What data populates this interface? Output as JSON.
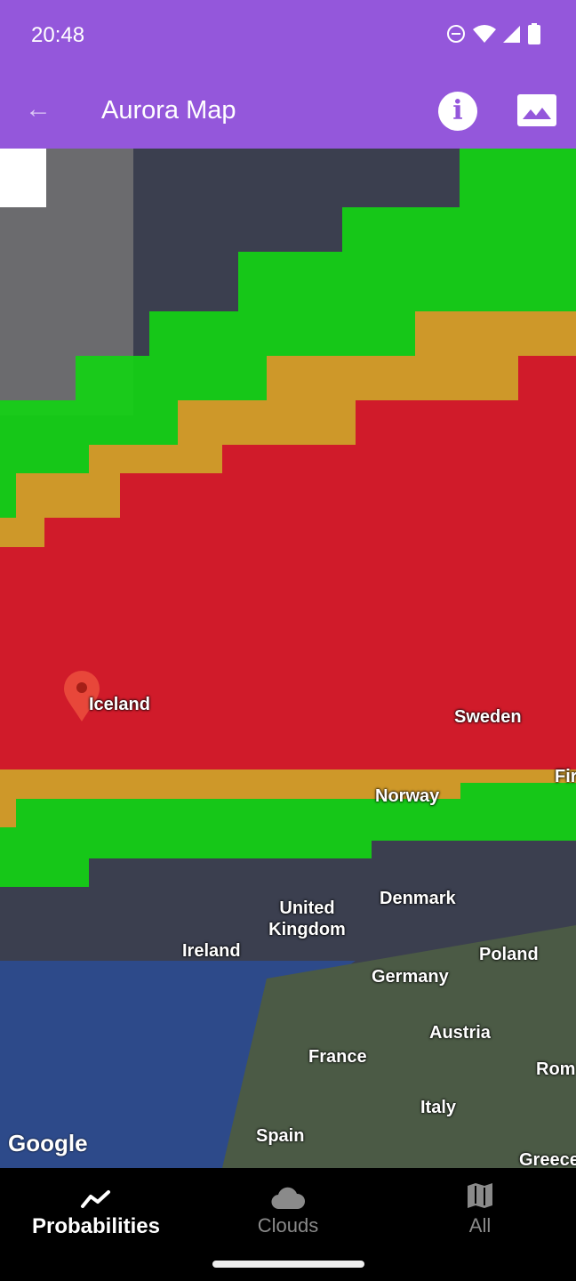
{
  "status": {
    "time": "20:48",
    "icons": [
      "do-not-disturb-icon",
      "wifi-icon",
      "signal-icon",
      "battery-icon"
    ]
  },
  "appbar": {
    "title": "Aurora Map",
    "back_icon": "arrow-left-icon",
    "info_icon": "info-icon",
    "image_icon": "image-icon"
  },
  "map": {
    "labels": {
      "iceland": "Iceland",
      "sweden": "Sweden",
      "norway": "Norway",
      "finland": "Fir",
      "denmark": "Denmark",
      "uk": "United Kingdom",
      "ireland": "Ireland",
      "poland": "Poland",
      "germany": "Germany",
      "austria": "Austria",
      "france": "France",
      "rome": "Rom",
      "italy": "Italy",
      "spain": "Spain",
      "greece": "Greece"
    },
    "attribution": "Google",
    "colors": {
      "high": "#d0142a",
      "medium": "#d8962a",
      "low": "#14d214"
    }
  },
  "nav": {
    "tabs": [
      {
        "label": "Probabilities",
        "icon": "chart-line-icon",
        "active": true
      },
      {
        "label": "Clouds",
        "icon": "cloud-icon",
        "active": false
      },
      {
        "label": "All",
        "icon": "map-icon",
        "active": false
      }
    ]
  }
}
